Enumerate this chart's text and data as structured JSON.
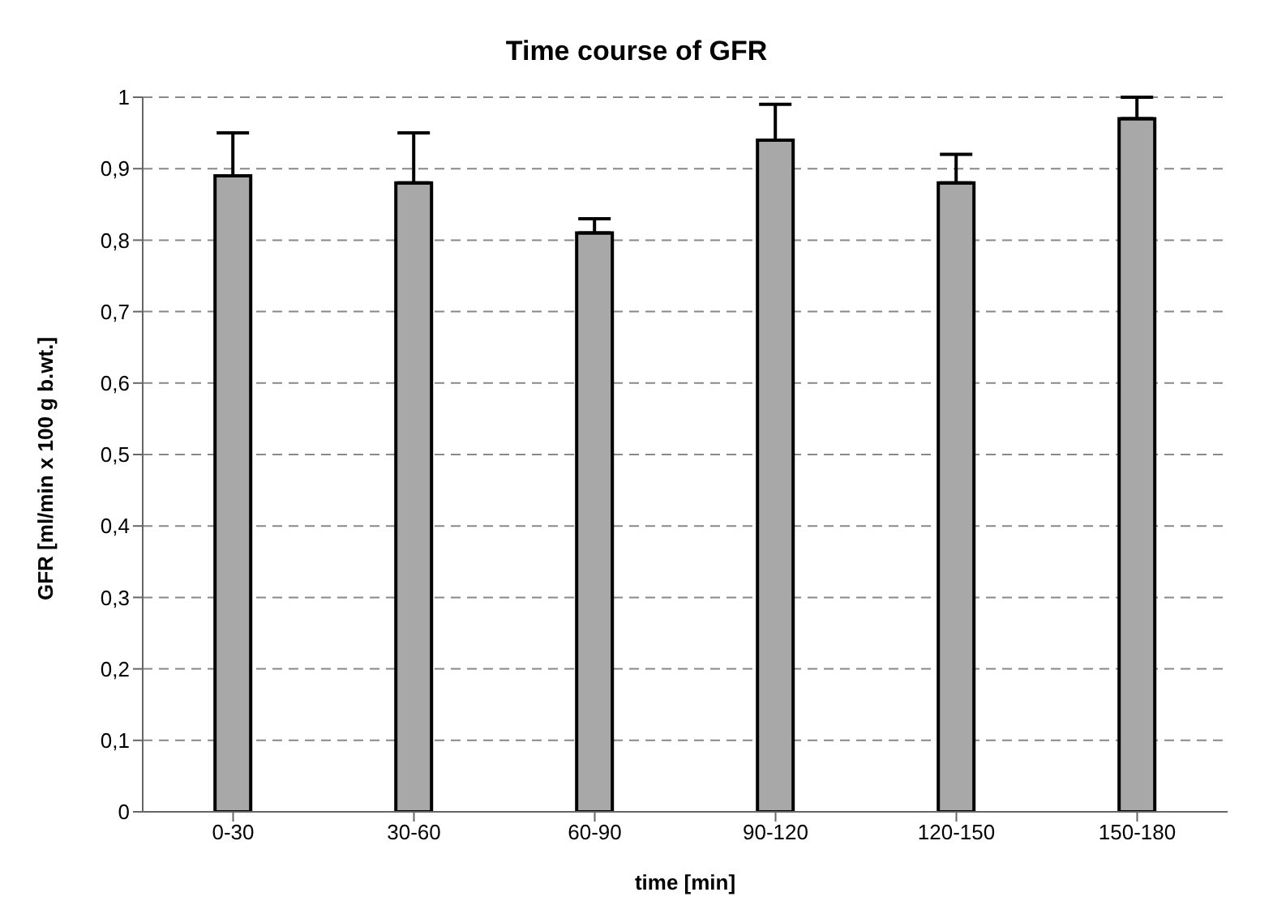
{
  "chart_data": {
    "type": "bar",
    "title": "Time course of GFR",
    "xlabel": "time [min]",
    "ylabel": "GFR [ml/min x 100 g b.wt.]",
    "categories": [
      "0-30",
      "30-60",
      "60-90",
      "90-120",
      "120-150",
      "150-180"
    ],
    "values": [
      0.89,
      0.88,
      0.81,
      0.94,
      0.88,
      0.97
    ],
    "errors": [
      [
        0.89,
        0.95
      ],
      [
        0.88,
        0.95
      ],
      [
        0.81,
        0.83
      ],
      [
        0.94,
        0.99
      ],
      [
        0.88,
        0.92
      ],
      [
        0.97,
        1.0
      ]
    ],
    "color": "#a8a8a8",
    "ylim": [
      0,
      1
    ],
    "yticks": [
      {
        "value": 0,
        "label": "0"
      },
      {
        "value": 0.1,
        "label": "0,1"
      },
      {
        "value": 0.2,
        "label": "0,2"
      },
      {
        "value": 0.3,
        "label": "0,3"
      },
      {
        "value": 0.4,
        "label": "0,4"
      },
      {
        "value": 0.5,
        "label": "0,5"
      },
      {
        "value": 0.6,
        "label": "0,6"
      },
      {
        "value": 0.7,
        "label": "0,7"
      },
      {
        "value": 0.8,
        "label": "0,8"
      },
      {
        "value": 0.9,
        "label": "0,9"
      },
      {
        "value": 1,
        "label": "1"
      }
    ],
    "grid": "y"
  }
}
